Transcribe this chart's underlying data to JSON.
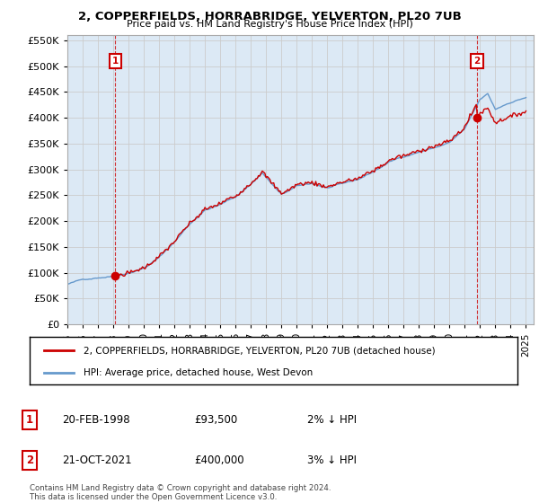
{
  "title": "2, COPPERFIELDS, HORRABRIDGE, YELVERTON, PL20 7UB",
  "subtitle": "Price paid vs. HM Land Registry's House Price Index (HPI)",
  "ylim": [
    0,
    560000
  ],
  "yticks": [
    0,
    50000,
    100000,
    150000,
    200000,
    250000,
    300000,
    350000,
    400000,
    450000,
    500000,
    550000
  ],
  "xlim_start": 1995.0,
  "xlim_end": 2025.5,
  "hpi_color": "#6699cc",
  "price_color": "#cc0000",
  "grid_color": "#cccccc",
  "bg_color": "#dce9f5",
  "plot_bg_color": "#dce9f5",
  "legend_label_price": "2, COPPERFIELDS, HORRABRIDGE, YELVERTON, PL20 7UB (detached house)",
  "legend_label_hpi": "HPI: Average price, detached house, West Devon",
  "transaction_1_x": 1998.13,
  "transaction_1_price": 93500,
  "transaction_2_x": 2021.8,
  "transaction_2_price": 400000,
  "footnote": "Contains HM Land Registry data © Crown copyright and database right 2024.\nThis data is licensed under the Open Government Licence v3.0.",
  "table_row1": [
    "1",
    "20-FEB-1998",
    "£93,500",
    "2% ↓ HPI"
  ],
  "table_row2": [
    "2",
    "21-OCT-2021",
    "£400,000",
    "3% ↓ HPI"
  ]
}
